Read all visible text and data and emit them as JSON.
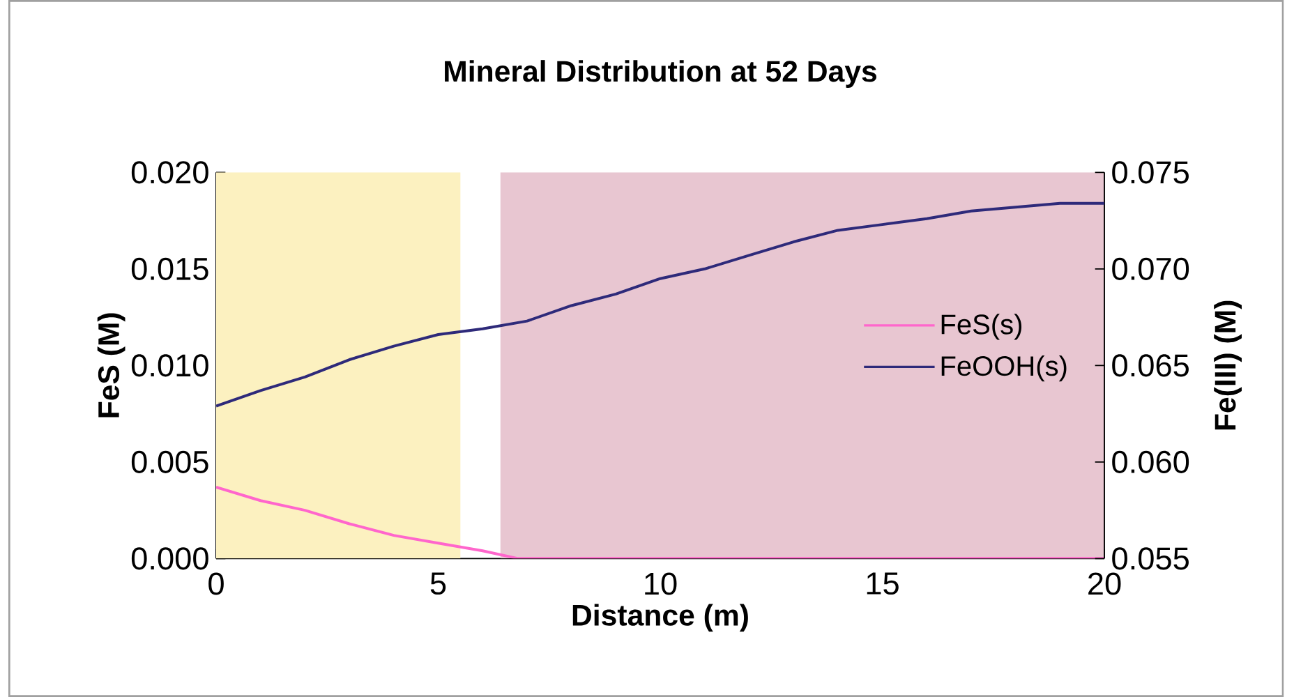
{
  "chart_data": {
    "type": "line",
    "title": "Mineral Distribution at 52 Days",
    "xlabel": "Distance (m)",
    "ylabel": "FeS (M)",
    "y2label": "Fe(III) (M)",
    "xlim": [
      0,
      20
    ],
    "xticks": [
      0,
      5,
      10,
      15,
      20
    ],
    "ylim": [
      0,
      0.02
    ],
    "yticks": [
      {
        "value": 0,
        "label": "0.000"
      },
      {
        "value": 0.005,
        "label": "0.005"
      },
      {
        "value": 0.01,
        "label": "0.010"
      },
      {
        "value": 0.015,
        "label": "0.015"
      },
      {
        "value": 0.02,
        "label": "0.020"
      }
    ],
    "y2lim": [
      0.055,
      0.075
    ],
    "y2ticks": [
      {
        "value": 0.055,
        "label": "0.055"
      },
      {
        "value": 0.06,
        "label": "0.060"
      },
      {
        "value": 0.065,
        "label": "0.065"
      },
      {
        "value": 0.07,
        "label": "0.070"
      },
      {
        "value": 0.075,
        "label": "0.075"
      }
    ],
    "bands": [
      {
        "axis": "x",
        "from": 0,
        "to": 5.5,
        "color": "#fcf1c0"
      },
      {
        "axis": "x",
        "from": 6.4,
        "to": 20,
        "color": "#e8c6d1"
      }
    ],
    "series": [
      {
        "name": "FeS(s)",
        "color": "#ff66cc",
        "x": [
          0,
          1,
          2,
          3,
          4,
          5,
          6,
          6.8,
          8,
          10,
          15,
          20
        ],
        "values": [
          0.0037,
          0.003,
          0.0025,
          0.0018,
          0.0012,
          0.0008,
          0.0004,
          0,
          0,
          0,
          0,
          0
        ]
      },
      {
        "name": "FeOOH(s)",
        "color": "#2e2a7a",
        "axis": "y2",
        "x": [
          0,
          1,
          2,
          3,
          4,
          5,
          6,
          7,
          8,
          9,
          10,
          11,
          12,
          13,
          14,
          15,
          16,
          17,
          18,
          19,
          20
        ],
        "values": [
          0.0629,
          0.0637,
          0.0644,
          0.0653,
          0.066,
          0.0666,
          0.0669,
          0.0673,
          0.0681,
          0.0687,
          0.0695,
          0.07,
          0.0707,
          0.0714,
          0.072,
          0.0723,
          0.0726,
          0.073,
          0.0732,
          0.0734,
          0.0734
        ]
      }
    ],
    "legend": "right",
    "grid": false,
    "marker": "none",
    "line_style": "solid"
  }
}
